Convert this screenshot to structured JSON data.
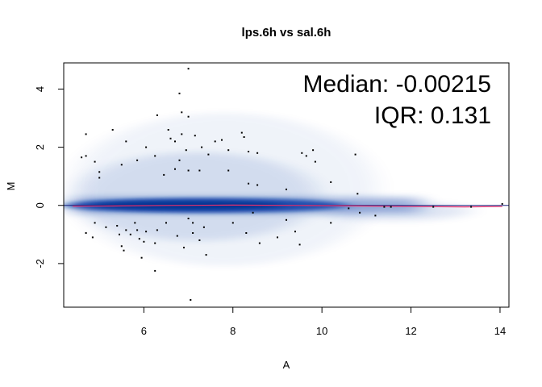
{
  "chart_data": {
    "type": "scatter",
    "subtype": "MA-plot (smoothed density)",
    "title": "lps.6h vs sal.6h",
    "xlabel": "A",
    "ylabel": "M",
    "xlim": [
      4.2,
      14.2
    ],
    "ylim": [
      -3.5,
      4.9
    ],
    "xticks": [
      6,
      8,
      10,
      12,
      14
    ],
    "yticks": [
      -2,
      0,
      2,
      4
    ],
    "grid": false,
    "annotations": {
      "median": "Median: -0.00215",
      "iqr": "IQR: 0.131"
    },
    "reference_line": {
      "y": 0,
      "color": "#1a237e"
    },
    "loess_line": {
      "color": "#e8326e",
      "points": [
        [
          4.4,
          -0.03
        ],
        [
          5.3,
          -0.02
        ],
        [
          6.5,
          0.0
        ],
        [
          8.0,
          0.01
        ],
        [
          9.5,
          0.0
        ],
        [
          10.8,
          -0.02
        ],
        [
          12.0,
          -0.04
        ],
        [
          13.2,
          -0.05
        ],
        [
          14.05,
          -0.04
        ]
      ]
    },
    "density_color": "#0a3fa8",
    "points": [
      [
        7.0,
        4.7
      ],
      [
        6.8,
        3.85
      ],
      [
        6.3,
        3.1
      ],
      [
        6.85,
        3.2
      ],
      [
        7.0,
        3.05
      ],
      [
        4.7,
        2.45
      ],
      [
        5.3,
        2.6
      ],
      [
        4.6,
        1.65
      ],
      [
        4.7,
        1.7
      ],
      [
        4.9,
        1.5
      ],
      [
        5.0,
        1.15
      ],
      [
        5.5,
        1.4
      ],
      [
        5.6,
        2.2
      ],
      [
        5.85,
        1.55
      ],
      [
        6.05,
        2.0
      ],
      [
        6.25,
        1.7
      ],
      [
        6.55,
        2.6
      ],
      [
        6.6,
        2.3
      ],
      [
        6.7,
        2.2
      ],
      [
        6.85,
        2.45
      ],
      [
        6.95,
        1.9
      ],
      [
        7.15,
        2.4
      ],
      [
        7.3,
        2.0
      ],
      [
        7.45,
        1.75
      ],
      [
        7.6,
        2.2
      ],
      [
        7.75,
        2.25
      ],
      [
        7.9,
        1.9
      ],
      [
        8.2,
        2.5
      ],
      [
        8.25,
        2.35
      ],
      [
        8.35,
        1.85
      ],
      [
        8.55,
        1.8
      ],
      [
        9.55,
        1.8
      ],
      [
        9.65,
        1.7
      ],
      [
        9.8,
        1.9
      ],
      [
        9.85,
        1.5
      ],
      [
        10.75,
        1.75
      ],
      [
        6.45,
        1.05
      ],
      [
        6.7,
        1.25
      ],
      [
        6.8,
        1.55
      ],
      [
        7.0,
        1.2
      ],
      [
        7.25,
        1.2
      ],
      [
        7.9,
        1.2
      ],
      [
        8.35,
        0.75
      ],
      [
        8.55,
        0.7
      ],
      [
        9.2,
        0.55
      ],
      [
        10.2,
        0.8
      ],
      [
        10.8,
        0.4
      ],
      [
        5.0,
        0.95
      ],
      [
        4.9,
        -0.6
      ],
      [
        4.85,
        -1.1
      ],
      [
        4.7,
        -0.95
      ],
      [
        5.15,
        -0.75
      ],
      [
        5.4,
        -0.7
      ],
      [
        5.45,
        -1.0
      ],
      [
        5.6,
        -0.85
      ],
      [
        5.5,
        -1.4
      ],
      [
        5.55,
        -1.55
      ],
      [
        5.7,
        -1.0
      ],
      [
        5.8,
        -0.6
      ],
      [
        5.85,
        -0.85
      ],
      [
        5.9,
        -1.15
      ],
      [
        6.05,
        -0.9
      ],
      [
        6.0,
        -1.25
      ],
      [
        6.3,
        -0.85
      ],
      [
        6.25,
        -1.3
      ],
      [
        5.95,
        -1.8
      ],
      [
        6.25,
        -2.25
      ],
      [
        6.5,
        -0.6
      ],
      [
        6.75,
        -1.05
      ],
      [
        6.9,
        -1.45
      ],
      [
        7.1,
        -0.95
      ],
      [
        7.25,
        -1.2
      ],
      [
        7.35,
        -0.75
      ],
      [
        7.4,
        -1.7
      ],
      [
        7.1,
        -0.6
      ],
      [
        8.0,
        -0.6
      ],
      [
        8.3,
        -0.95
      ],
      [
        8.6,
        -1.3
      ],
      [
        9.0,
        -1.1
      ],
      [
        9.2,
        -0.5
      ],
      [
        9.4,
        -0.9
      ],
      [
        9.5,
        -1.35
      ],
      [
        10.2,
        -0.6
      ],
      [
        10.6,
        -0.1
      ],
      [
        10.85,
        -0.25
      ],
      [
        11.2,
        -0.35
      ],
      [
        11.4,
        -0.05
      ],
      [
        11.55,
        -0.05
      ],
      [
        12.5,
        -0.05
      ],
      [
        13.35,
        -0.05
      ],
      [
        14.05,
        0.05
      ],
      [
        7.05,
        -3.25
      ],
      [
        7.0,
        -0.45
      ],
      [
        8.45,
        -0.25
      ]
    ]
  }
}
